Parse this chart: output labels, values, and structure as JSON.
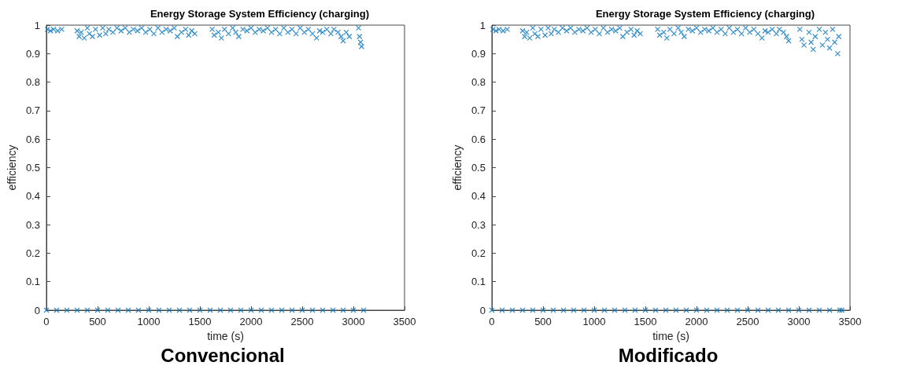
{
  "chart_data": [
    {
      "type": "scatter",
      "title": "Energy Storage System Efficiency (charging)",
      "xlabel": "time (s)",
      "ylabel": "efficiency",
      "annotations": [
        "Convencional"
      ],
      "marker": "cross",
      "grid": false,
      "xlim": [
        0,
        3500
      ],
      "xticks": [
        0,
        500,
        1000,
        1500,
        2000,
        2500,
        3000,
        3500
      ],
      "ylim": [
        0,
        1
      ],
      "yticks": [
        0,
        0.1,
        0.2,
        0.3,
        0.4,
        0.5,
        0.6,
        0.7,
        0.8,
        0.9,
        1
      ],
      "series": [
        {
          "color": "#0072bd",
          "x": [
            10,
            40,
            70,
            110,
            150,
            300,
            320,
            340,
            370,
            400,
            420,
            450,
            480,
            520,
            550,
            580,
            610,
            650,
            690,
            730,
            770,
            810,
            850,
            890,
            930,
            970,
            1010,
            1050,
            1090,
            1130,
            1170,
            1210,
            1250,
            1280,
            1320,
            1360,
            1390,
            1420,
            1450,
            1620,
            1640,
            1680,
            1710,
            1740,
            1780,
            1820,
            1850,
            1880,
            1920,
            1960,
            2000,
            2040,
            2080,
            2120,
            2160,
            2200,
            2240,
            2280,
            2320,
            2360,
            2400,
            2440,
            2480,
            2520,
            2560,
            2600,
            2640,
            2670,
            2700,
            2740,
            2780,
            2810,
            2850,
            2880,
            2900,
            2930,
            2960,
            3050,
            3060,
            3070,
            3080,
            0,
            100,
            200,
            300,
            400,
            500,
            600,
            700,
            800,
            900,
            1000,
            1100,
            1200,
            1300,
            1400,
            1500,
            1600,
            1700,
            1800,
            1900,
            2000,
            2100,
            2200,
            2300,
            2400,
            2500,
            2600,
            2700,
            2800,
            2900,
            3000,
            3100
          ],
          "values": [
            0.985,
            0.98,
            0.985,
            0.98,
            0.985,
            0.98,
            0.96,
            0.975,
            0.955,
            0.99,
            0.97,
            0.96,
            0.985,
            0.965,
            0.99,
            0.97,
            0.985,
            0.975,
            0.99,
            0.98,
            0.99,
            0.975,
            0.985,
            0.98,
            0.99,
            0.975,
            0.985,
            0.97,
            0.99,
            0.975,
            0.985,
            0.98,
            0.99,
            0.96,
            0.975,
            0.985,
            0.965,
            0.98,
            0.97,
            0.985,
            0.965,
            0.975,
            0.955,
            0.985,
            0.97,
            0.99,
            0.975,
            0.96,
            0.985,
            0.98,
            0.99,
            0.975,
            0.985,
            0.98,
            0.99,
            0.975,
            0.985,
            0.97,
            0.99,
            0.975,
            0.985,
            0.97,
            0.99,
            0.975,
            0.985,
            0.97,
            0.955,
            0.98,
            0.975,
            0.985,
            0.97,
            0.985,
            0.975,
            0.96,
            0.945,
            0.975,
            0.96,
            0.99,
            0.96,
            0.94,
            0.925,
            0,
            0,
            0,
            0,
            0,
            0,
            0,
            0,
            0,
            0,
            0,
            0,
            0,
            0,
            0,
            0,
            0,
            0,
            0,
            0,
            0,
            0,
            0,
            0,
            0,
            0,
            0,
            0,
            0,
            0,
            0,
            0
          ]
        }
      ]
    },
    {
      "type": "scatter",
      "title": "Energy Storage System Efficiency (charging)",
      "xlabel": "time (s)",
      "ylabel": "efficiency",
      "annotations": [
        "Modificado"
      ],
      "marker": "cross",
      "grid": false,
      "xlim": [
        0,
        3500
      ],
      "xticks": [
        0,
        500,
        1000,
        1500,
        2000,
        2500,
        3000,
        3500
      ],
      "ylim": [
        0,
        1
      ],
      "yticks": [
        0,
        0.1,
        0.2,
        0.3,
        0.4,
        0.5,
        0.6,
        0.7,
        0.8,
        0.9,
        1
      ],
      "series": [
        {
          "color": "#0072bd",
          "x": [
            10,
            40,
            70,
            110,
            150,
            300,
            320,
            340,
            370,
            400,
            420,
            450,
            480,
            520,
            550,
            580,
            610,
            650,
            690,
            730,
            770,
            810,
            850,
            890,
            930,
            970,
            1010,
            1050,
            1090,
            1130,
            1170,
            1210,
            1250,
            1280,
            1320,
            1360,
            1390,
            1420,
            1450,
            1620,
            1640,
            1680,
            1710,
            1740,
            1780,
            1820,
            1850,
            1880,
            1920,
            1960,
            2000,
            2040,
            2080,
            2120,
            2160,
            2200,
            2240,
            2280,
            2320,
            2360,
            2400,
            2440,
            2480,
            2520,
            2560,
            2600,
            2640,
            2670,
            2700,
            2740,
            2780,
            2810,
            2850,
            2880,
            2900,
            3010,
            3030,
            3050,
            3100,
            3120,
            3140,
            3160,
            3200,
            3230,
            3260,
            3280,
            3300,
            3330,
            3350,
            3380,
            3390,
            0,
            100,
            200,
            300,
            400,
            500,
            600,
            700,
            800,
            900,
            1000,
            1100,
            1200,
            1300,
            1400,
            1500,
            1600,
            1700,
            1800,
            1900,
            2000,
            2100,
            2200,
            2300,
            2400,
            2500,
            2600,
            2700,
            2800,
            2900,
            3000,
            3100,
            3200,
            3300,
            3400,
            3420
          ],
          "values": [
            0.985,
            0.98,
            0.985,
            0.98,
            0.985,
            0.98,
            0.96,
            0.975,
            0.955,
            0.99,
            0.97,
            0.96,
            0.985,
            0.965,
            0.99,
            0.97,
            0.985,
            0.975,
            0.99,
            0.98,
            0.99,
            0.975,
            0.985,
            0.98,
            0.99,
            0.975,
            0.985,
            0.97,
            0.99,
            0.975,
            0.985,
            0.98,
            0.99,
            0.96,
            0.975,
            0.985,
            0.965,
            0.98,
            0.97,
            0.985,
            0.965,
            0.975,
            0.955,
            0.985,
            0.97,
            0.99,
            0.975,
            0.96,
            0.985,
            0.98,
            0.99,
            0.975,
            0.985,
            0.98,
            0.99,
            0.975,
            0.985,
            0.97,
            0.99,
            0.975,
            0.985,
            0.97,
            0.99,
            0.975,
            0.985,
            0.97,
            0.955,
            0.98,
            0.975,
            0.985,
            0.97,
            0.985,
            0.975,
            0.96,
            0.945,
            0.985,
            0.95,
            0.93,
            0.975,
            0.94,
            0.915,
            0.96,
            0.985,
            0.93,
            0.975,
            0.95,
            0.92,
            0.985,
            0.94,
            0.9,
            0.96,
            0,
            0,
            0,
            0,
            0,
            0,
            0,
            0,
            0,
            0,
            0,
            0,
            0,
            0,
            0,
            0,
            0,
            0,
            0,
            0,
            0,
            0,
            0,
            0,
            0,
            0,
            0,
            0,
            0,
            0,
            0,
            0,
            0,
            0,
            0,
            0
          ]
        }
      ]
    }
  ]
}
